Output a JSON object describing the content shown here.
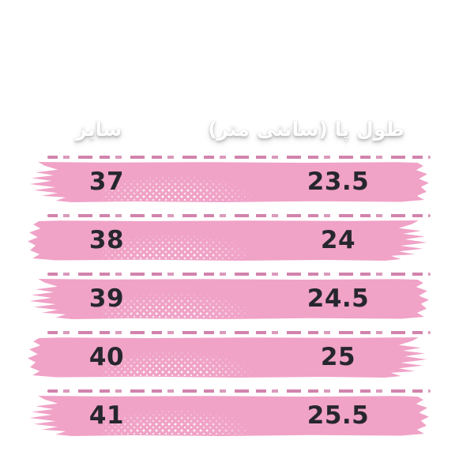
{
  "header": {
    "size_label": "سایز",
    "length_label": "طول پا (سانتی متر)"
  },
  "rows": [
    {
      "size": "37",
      "length_cm": "23.5"
    },
    {
      "size": "38",
      "length_cm": "24"
    },
    {
      "size": "39",
      "length_cm": "24.5"
    },
    {
      "size": "40",
      "length_cm": "25"
    },
    {
      "size": "41",
      "length_cm": "25.5"
    }
  ],
  "colors": {
    "bar_pink": "#f0a2c7",
    "dash_pink": "#c66498",
    "number_dark": "#26262e",
    "header_text": "#ffffff",
    "header_shadow": "#9a9a9a",
    "background": "#ffffff"
  },
  "chart_data": {
    "type": "table",
    "title": "",
    "columns": [
      {
        "key": "size",
        "label": "سایز"
      },
      {
        "key": "foot_length_cm",
        "label": "طول پا (سانتی متر)"
      }
    ],
    "rows": [
      [
        "37",
        "23.5"
      ],
      [
        "38",
        "24"
      ],
      [
        "39",
        "24.5"
      ],
      [
        "40",
        "25"
      ],
      [
        "41",
        "25.5"
      ]
    ]
  }
}
